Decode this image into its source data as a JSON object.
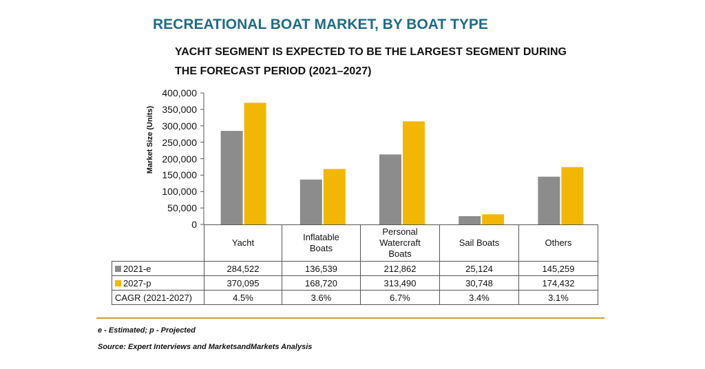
{
  "header": {
    "title": "RECREATIONAL BOAT MARKET, BY BOAT TYPE",
    "subtitle": "YACHT SEGMENT IS EXPECTED TO BE THE LARGEST SEGMENT DURING THE FORECAST PERIOD (2021–2027)"
  },
  "chart_data": {
    "type": "bar",
    "ylabel": "Market Size (Units)",
    "ylim": [
      0,
      400000
    ],
    "yticks": [
      "400,000",
      "350,000",
      "300,000",
      "250,000",
      "200,000",
      "150,000",
      "100,000",
      "50,000",
      "0"
    ],
    "ytick_values": [
      400000,
      350000,
      300000,
      250000,
      200000,
      150000,
      100000,
      50000,
      0
    ],
    "categories": [
      "Yacht",
      "Inflatable Boats",
      "Personal Watercraft Boats",
      "Sail Boats",
      "Others"
    ],
    "series": [
      {
        "name": "2021-e",
        "color": "#8c8c8c",
        "values": [
          284522,
          136539,
          212862,
          25124,
          145259
        ]
      },
      {
        "name": "2027-p",
        "color": "#f2b705",
        "values": [
          370095,
          168720,
          313490,
          30748,
          174432
        ]
      }
    ],
    "grid": false,
    "legend": "in data table rows"
  },
  "table": {
    "rows": [
      {
        "label": "2021-e",
        "color": "#8c8c8c",
        "cells": [
          "284,522",
          "136,539",
          "212,862",
          "25,124",
          "145,259"
        ]
      },
      {
        "label": "2027-p",
        "color": "#f2b705",
        "cells": [
          "370,095",
          "168,720",
          "313,490",
          "30,748",
          "174,432"
        ]
      },
      {
        "label": "CAGR (2021-2027)",
        "color": "",
        "cells": [
          "4.5%",
          "3.6%",
          "6.7%",
          "3.4%",
          "3.1%"
        ]
      }
    ]
  },
  "footer": {
    "note": "e - Estimated; p - Projected",
    "source": "Source: Expert Interviews and MarketsandMarkets Analysis"
  }
}
